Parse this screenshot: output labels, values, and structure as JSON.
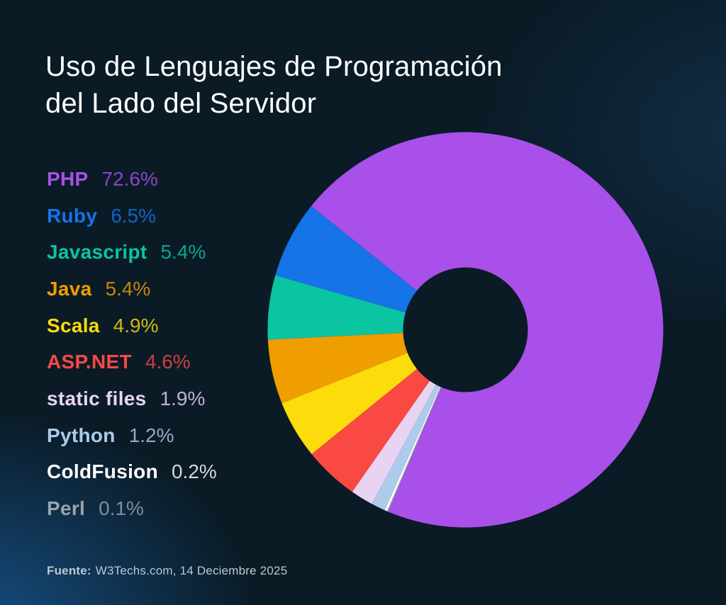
{
  "title": {
    "line1": "Uso de Lenguajes de Programación",
    "line2": "del Lado del Servidor"
  },
  "chart_data": {
    "type": "pie",
    "donut": true,
    "title": "Uso de Lenguajes de Programación del Lado del Servidor",
    "unit": "%",
    "legend_position": "left",
    "start_angle_deg": 247,
    "direction": "ccw",
    "outer_radius": 279,
    "inner_radius": 88,
    "slices": [
      {
        "label": "PHP",
        "value": 72.6,
        "display": "72.6%",
        "color": "#a94fea"
      },
      {
        "label": "Ruby",
        "value": 6.5,
        "display": "6.5%",
        "color": "#1673e8"
      },
      {
        "label": "Javascript",
        "value": 5.4,
        "display": "5.4%",
        "color": "#0bc4a2"
      },
      {
        "label": "Java",
        "value": 5.4,
        "display": "5.4%",
        "color": "#f09d00"
      },
      {
        "label": "Scala",
        "value": 4.9,
        "display": "4.9%",
        "color": "#fcdc0a"
      },
      {
        "label": "ASP.NET",
        "value": 4.6,
        "display": "4.6%",
        "color": "#fa4843"
      },
      {
        "label": "static files",
        "value": 1.9,
        "display": "1.9%",
        "color": "#e9d3f3"
      },
      {
        "label": "Python",
        "value": 1.2,
        "display": "1.2%",
        "color": "#adcbea"
      },
      {
        "label": "ColdFusion",
        "value": 0.2,
        "display": "0.2%",
        "color": "#ffffff"
      },
      {
        "label": "Perl",
        "value": 0.1,
        "display": "0.1%",
        "color": "#9aa4ad"
      }
    ],
    "source": "W3Techs.com, 14 Deciembre 2025"
  },
  "footer": {
    "label": "Fuente:",
    "text": "W3Techs.com, 14 Deciembre 2025"
  }
}
